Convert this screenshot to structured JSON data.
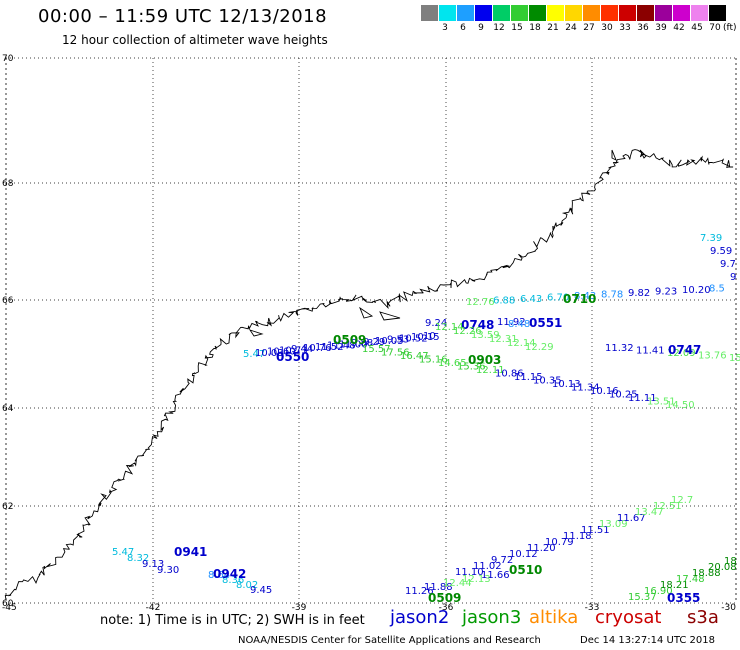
{
  "header": {
    "title": "00:00 – 11:59 UTC 12/13/2018",
    "subtitle": "12 hour collection of altimeter wave heights"
  },
  "legend": {
    "unit": "(ft)",
    "colors": [
      "#7f7f7f",
      "#00e5ee",
      "#1e9fff",
      "#0000ee",
      "#00cd66",
      "#32cd32",
      "#008b00",
      "#ffff00",
      "#ffd700",
      "#ff8c00",
      "#ff3000",
      "#cd0000",
      "#8b0000",
      "#9b009b",
      "#cd00cd",
      "#ee82ee",
      "#000000"
    ],
    "labels": [
      "3",
      "6",
      "9",
      "12",
      "15",
      "18",
      "21",
      "24",
      "27",
      "30",
      "33",
      "36",
      "39",
      "42",
      "45",
      "70"
    ]
  },
  "map": {
    "lat_labels": [
      "70",
      "68",
      "66",
      "64",
      "62",
      "60"
    ],
    "lon_labels": [
      "-45",
      "-42",
      "-39",
      "-36",
      "-33",
      "-30"
    ],
    "tracks": [
      {
        "time": "0941",
        "color": "#0000cc",
        "values": [
          {
            "text": "5.47",
            "color": "#00bbdd"
          },
          {
            "text": "8.32",
            "color": "#00bbdd"
          },
          {
            "text": "9.13",
            "color": "#0000cc"
          },
          {
            "text": "9.30",
            "color": "#0000cc"
          }
        ]
      },
      {
        "time": "0942",
        "color": "#0000cc",
        "values": [
          {
            "text": "8.64",
            "color": "#1e90ff"
          },
          {
            "text": "8.36",
            "color": "#00bbdd"
          },
          {
            "text": "8.02",
            "color": "#00bbdd"
          },
          {
            "text": "9.45",
            "color": "#0000cc"
          }
        ]
      },
      {
        "time": "0550",
        "color": "#0000cc",
        "values": [
          {
            "text": "5.47",
            "color": "#00bbdd"
          },
          {
            "text": "10.03",
            "color": "#0000cc"
          },
          {
            "text": "10.60",
            "color": "#0000cc"
          },
          {
            "text": "10.73",
            "color": "#0000cc"
          },
          {
            "text": "9.44",
            "color": "#0000cc"
          },
          {
            "text": "10.76",
            "color": "#0000cc"
          },
          {
            "text": "11.52",
            "color": "#0000cc"
          },
          {
            "text": "11.48",
            "color": "#0000cc"
          },
          {
            "text": "11.00",
            "color": "#0000cc"
          },
          {
            "text": "9.88",
            "color": "#0000cc"
          },
          {
            "text": "9.29",
            "color": "#0000cc"
          },
          {
            "text": "10.05",
            "color": "#0000cc"
          },
          {
            "text": "9.53",
            "color": "#0000cc"
          },
          {
            "text": "10.52",
            "color": "#0000cc"
          },
          {
            "text": "10.15",
            "color": "#0000cc"
          },
          {
            "text": "10",
            "color": "#0000cc"
          }
        ]
      },
      {
        "time": "0551",
        "color": "#0000cc",
        "values": [
          {
            "text": "11.92",
            "color": "#0000cc"
          },
          {
            "text": "8.48",
            "color": "#1e90ff"
          }
        ]
      },
      {
        "time": "0748",
        "color": "#0000cc",
        "values": [
          {
            "text": "9.24",
            "color": "#0000cc"
          }
        ]
      },
      {
        "time": "0747",
        "color": "#0000cc",
        "values": [
          {
            "text": "11.32",
            "color": "#0000cc"
          },
          {
            "text": "11.41",
            "color": "#0000cc"
          },
          {
            "text": "12.09",
            "color": "#44dd44"
          },
          {
            "text": "13.76",
            "color": "#66ee66"
          },
          {
            "text": "15.1",
            "color": "#66ee66"
          }
        ]
      },
      {
        "time": "0903",
        "color": "#008800",
        "values": [
          {
            "text": "15.57",
            "color": "#33cc33"
          },
          {
            "text": "17.56",
            "color": "#33cc33"
          },
          {
            "text": "16.47",
            "color": "#33cc33"
          },
          {
            "text": "15.16",
            "color": "#33cc33"
          },
          {
            "text": "14.65",
            "color": "#44dd44"
          },
          {
            "text": "15.36",
            "color": "#33cc33"
          },
          {
            "text": "12.11",
            "color": "#44dd44"
          },
          {
            "text": "10.86",
            "color": "#0000cc"
          },
          {
            "text": "11.15",
            "color": "#0000cc"
          },
          {
            "text": "10.35",
            "color": "#0000cc"
          },
          {
            "text": "10.13",
            "color": "#0000cc"
          },
          {
            "text": "11.34",
            "color": "#0000cc"
          },
          {
            "text": "10.16",
            "color": "#0000cc"
          },
          {
            "text": "10.25",
            "color": "#0000cc"
          },
          {
            "text": "11.11",
            "color": "#0000cc"
          },
          {
            "text": "13.51",
            "color": "#66ee66"
          },
          {
            "text": "14.50",
            "color": "#66ee66"
          }
        ]
      },
      {
        "time": "0509",
        "color": "#008800",
        "values": [
          {
            "text": "12.14",
            "color": "#44dd44"
          },
          {
            "text": "12.26",
            "color": "#44dd44"
          },
          {
            "text": "13.59",
            "color": "#66ee66"
          },
          {
            "text": "12.31",
            "color": "#66ee66"
          },
          {
            "text": "12.14",
            "color": "#66ee66"
          },
          {
            "text": "12.29",
            "color": "#66ee66"
          }
        ]
      },
      {
        "time": "0710",
        "color": "#008800",
        "values": [
          {
            "text": "12.76",
            "color": "#66ee66"
          },
          {
            "text": "6.88",
            "color": "#00bbdd"
          },
          {
            "text": "6.43",
            "color": "#00bbdd"
          },
          {
            "text": "6.70",
            "color": "#00bbdd"
          },
          {
            "text": "8.43",
            "color": "#1e90ff"
          },
          {
            "text": "8.78",
            "color": "#1e90ff"
          },
          {
            "text": "9.82",
            "color": "#0000cc"
          },
          {
            "text": "9.23",
            "color": "#0000cc"
          },
          {
            "text": "10.20",
            "color": "#0000cc"
          },
          {
            "text": "8.5",
            "color": "#1e90ff"
          }
        ]
      },
      {
        "time": "0510",
        "color": "#008800",
        "values": [
          {
            "text": "11.10",
            "color": "#0000cc"
          },
          {
            "text": "11.02",
            "color": "#0000cc"
          },
          {
            "text": "9.72",
            "color": "#0000cc"
          },
          {
            "text": "10.12",
            "color": "#0000cc"
          },
          {
            "text": "11.20",
            "color": "#0000cc"
          },
          {
            "text": "10.79",
            "color": "#0000cc"
          },
          {
            "text": "11.18",
            "color": "#0000cc"
          },
          {
            "text": "11.51",
            "color": "#0000cc"
          },
          {
            "text": "13.09",
            "color": "#66ee66"
          },
          {
            "text": "11.67",
            "color": "#0000cc"
          },
          {
            "text": "13.47",
            "color": "#66ee66"
          },
          {
            "text": "12.51",
            "color": "#66ee66"
          },
          {
            "text": "12.7",
            "color": "#66ee66"
          }
        ]
      },
      {
        "time": "0509",
        "color": "#008800",
        "values": [
          {
            "text": "11.26",
            "color": "#0000cc"
          },
          {
            "text": "11.88",
            "color": "#0000cc"
          },
          {
            "text": "12.44",
            "color": "#66ee66"
          },
          {
            "text": "12.13",
            "color": "#66ee66"
          },
          {
            "text": "11.66",
            "color": "#0000cc"
          }
        ]
      },
      {
        "time": "0355",
        "color": "#0000cc",
        "values": [
          {
            "text": "15.37",
            "color": "#33cc33"
          },
          {
            "text": "16.90",
            "color": "#33cc33"
          },
          {
            "text": "18.21",
            "color": "#008800"
          },
          {
            "text": "17.48",
            "color": "#33cc33"
          },
          {
            "text": "18.88",
            "color": "#008800"
          },
          {
            "text": "20.08",
            "color": "#008800"
          },
          {
            "text": "18",
            "color": "#008800"
          }
        ]
      },
      {
        "time": "",
        "color": "#0000cc",
        "values": [
          {
            "text": "7.39",
            "color": "#00bbdd"
          },
          {
            "text": "9.59",
            "color": "#0000cc"
          },
          {
            "text": "9.7",
            "color": "#0000cc"
          },
          {
            "text": "9",
            "color": "#0000cc"
          }
        ]
      }
    ]
  },
  "footer": {
    "note": "note:  1) Time is in UTC;  2) SWH is in feet",
    "satellites": [
      {
        "name": "jason2",
        "color": "#0000cc"
      },
      {
        "name": "jason3",
        "color": "#009900"
      },
      {
        "name": "altika",
        "color": "#ff8c00"
      },
      {
        "name": "cryosat",
        "color": "#cc0000"
      },
      {
        "name": "s3a",
        "color": "#8b0000"
      }
    ],
    "credit": "NOAA/NESDIS Center for Satellite Applications and Research",
    "timestamp": "Dec 14 13:27:14 UTC 2018"
  }
}
